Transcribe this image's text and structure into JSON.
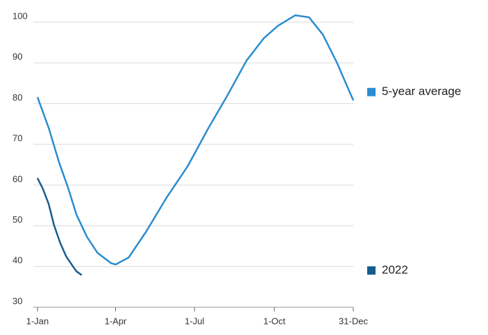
{
  "chart_data": {
    "type": "line",
    "xlim": [
      0,
      364
    ],
    "xticks": [
      {
        "value": 0,
        "label": "1-Jan"
      },
      {
        "value": 90,
        "label": "1-Apr"
      },
      {
        "value": 181,
        "label": "1-Jul"
      },
      {
        "value": 273,
        "label": "1-Oct"
      },
      {
        "value": 364,
        "label": "31-Dec"
      }
    ],
    "ylim": [
      30,
      100
    ],
    "yticks": [
      30,
      40,
      50,
      60,
      70,
      80,
      90,
      100
    ],
    "grid": true,
    "series": [
      {
        "name": "5-year average",
        "color": "#2a8ccf",
        "x": [
          0,
          13,
          25,
          35,
          45,
          57,
          69,
          85,
          90,
          105,
          125,
          149,
          173,
          197,
          217,
          241,
          261,
          277,
          297,
          313,
          329,
          345,
          357,
          364
        ],
        "values": [
          81.6,
          74.0,
          65.5,
          59.5,
          52.7,
          47.3,
          43.4,
          40.8,
          40.5,
          42.2,
          48.5,
          57.0,
          64.6,
          74.0,
          81.3,
          90.6,
          96.1,
          99.1,
          101.7,
          101.2,
          96.9,
          90.1,
          84.2,
          80.8
        ]
      },
      {
        "name": "2022",
        "color": "#165d8f",
        "x": [
          0,
          6,
          13,
          19,
          26,
          33,
          41,
          45,
          51
        ],
        "values": [
          61.7,
          59.2,
          55.3,
          50.2,
          45.9,
          42.5,
          40.0,
          38.8,
          37.9
        ]
      }
    ]
  }
}
